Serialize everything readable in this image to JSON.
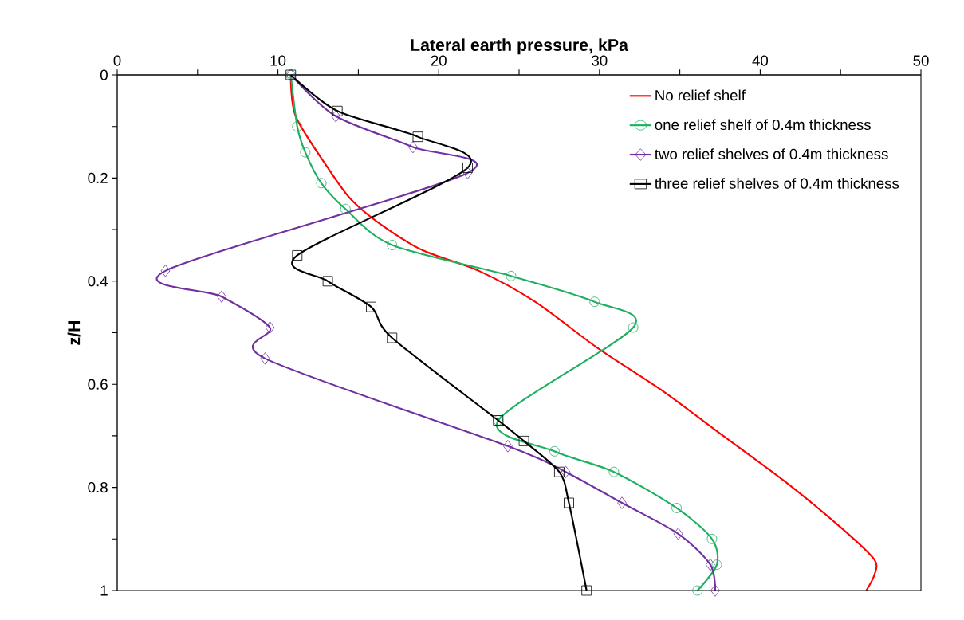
{
  "chart_data": {
    "type": "line",
    "xlabel": "Lateral earth pressure, kPa",
    "ylabel": "z/H",
    "xlim": [
      0,
      50
    ],
    "ylim": [
      1,
      0
    ],
    "xticks": [
      0,
      {
        "value": 5,
        "label": null
      },
      10,
      {
        "value": 15,
        "label": null
      },
      20,
      {
        "value": 25,
        "label": null
      },
      30,
      {
        "value": 35,
        "label": null
      },
      40,
      {
        "value": 45,
        "label": null
      },
      50
    ],
    "yticks": [
      0,
      {
        "value": 0.1,
        "label": null
      },
      0.2,
      {
        "value": 0.3,
        "label": null
      },
      0.4,
      {
        "value": 0.5,
        "label": null
      },
      0.6,
      {
        "value": 0.7,
        "label": null
      },
      0.8,
      {
        "value": 0.9,
        "label": null
      },
      1
    ],
    "grid": false,
    "legend": "top right",
    "line_style": "solid",
    "series": [
      {
        "name": "No relief shelf",
        "color": "#ff0000",
        "marker": "none",
        "x": [
          10.8,
          11.1,
          13.1,
          14.5,
          16.4,
          19.0,
          22.5,
          26.0,
          29.9,
          33.8,
          37.7,
          41.6,
          45.1,
          47.1,
          47.1,
          46.6
        ],
        "values": [
          0,
          0.08,
          0.18,
          0.24,
          0.29,
          0.34,
          0.38,
          0.44,
          0.53,
          0.61,
          0.7,
          0.79,
          0.88,
          0.94,
          0.97,
          1
        ]
      },
      {
        "name": "one relief shelf of 0.4m thickness",
        "color": "#1db060",
        "marker": "circle",
        "x": [
          10.8,
          11.2,
          11.7,
          12.7,
          14.2,
          17.1,
          24.5,
          29.7,
          32.1,
          23.7,
          27.2,
          30.9,
          34.8,
          37.0,
          37.3,
          36.1
        ],
        "values": [
          0,
          0.1,
          0.15,
          0.21,
          0.26,
          0.33,
          0.39,
          0.44,
          0.49,
          0.67,
          0.73,
          0.77,
          0.84,
          0.9,
          0.95,
          1
        ]
      },
      {
        "name": "two relief shelves of 0.4m thickness",
        "color": "#7030a0",
        "marker": "diamond",
        "x": [
          10.8,
          13.6,
          18.4,
          21.8,
          3.0,
          6.5,
          9.5,
          9.2,
          24.3,
          27.9,
          31.4,
          34.9,
          36.9,
          37.2
        ],
        "values": [
          0,
          0.08,
          0.14,
          0.19,
          0.38,
          0.43,
          0.49,
          0.55,
          0.72,
          0.77,
          0.83,
          0.89,
          0.95,
          1
        ]
      },
      {
        "name": "three relief shelves of 0.4m thickness",
        "color": "#000000",
        "marker": "square",
        "x": [
          10.8,
          13.7,
          18.7,
          21.8,
          11.2,
          13.1,
          15.8,
          17.1,
          23.7,
          25.3,
          27.5,
          28.1,
          29.2
        ],
        "values": [
          0,
          0.07,
          0.12,
          0.18,
          0.35,
          0.4,
          0.45,
          0.51,
          0.67,
          0.71,
          0.77,
          0.83,
          1
        ]
      }
    ]
  }
}
